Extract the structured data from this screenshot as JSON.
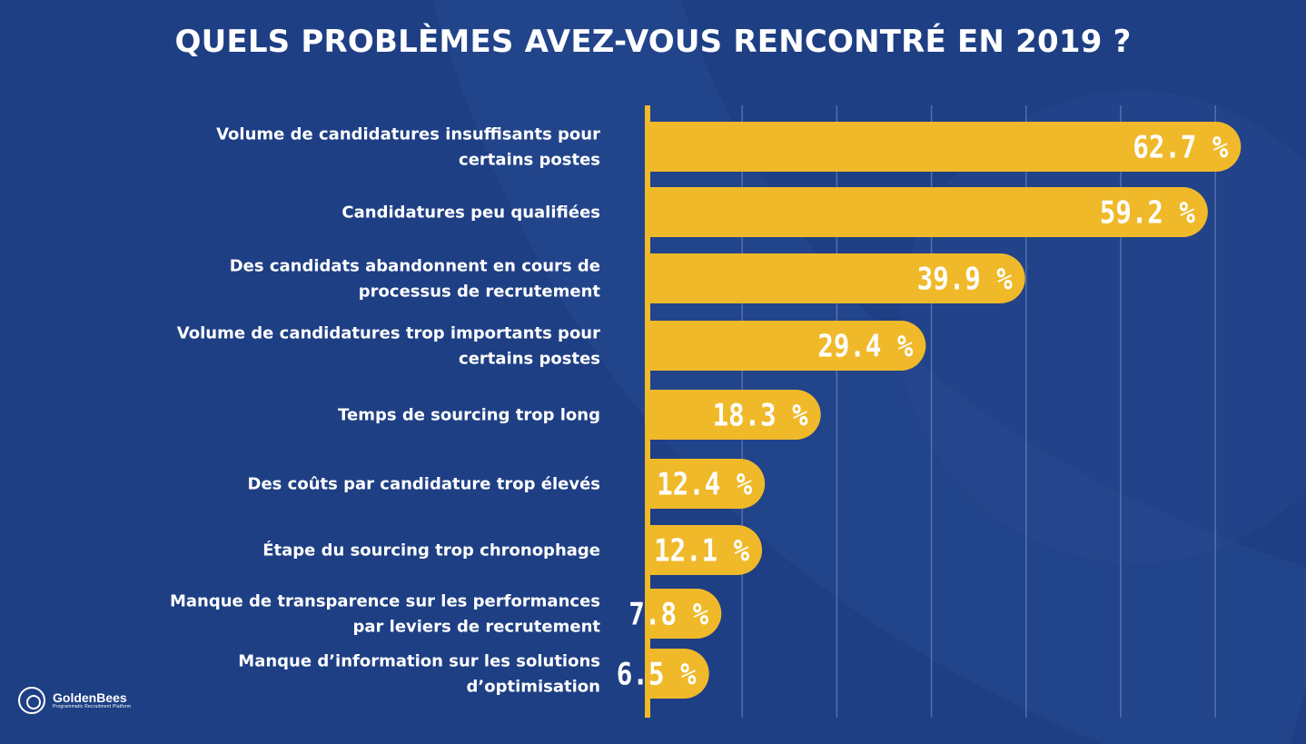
{
  "title": "QUELS PROBLÈMES AVEZ-VOUS RENCONTRÉ EN 2019 ?",
  "logo": {
    "name": "GoldenBees",
    "tagline": "Programmatic Recruitment Platform"
  },
  "colors": {
    "background": "#1e3f84",
    "bar": "#f0b92a",
    "text": "#ffffff",
    "grid": "#6b84b8"
  },
  "chart_data": {
    "type": "bar",
    "orientation": "horizontal",
    "title": "QUELS PROBLÈMES AVEZ-VOUS RENCONTRÉ EN 2019 ?",
    "xlabel": "",
    "ylabel": "",
    "xlim": [
      0,
      70
    ],
    "grid": true,
    "categories": [
      [
        "Volume de candidatures insuffisants pour",
        "certains postes"
      ],
      [
        "Candidatures peu qualifiées"
      ],
      [
        "Des candidats abandonnent en cours de",
        "processus de recrutement"
      ],
      [
        "Volume de candidatures trop importants pour",
        "certains postes"
      ],
      [
        "Temps de sourcing trop long"
      ],
      [
        "Des coûts par candidature trop élevés"
      ],
      [
        "Étape du sourcing trop chronophage"
      ],
      [
        "Manque de transparence sur les performances",
        "par leviers de recrutement"
      ],
      [
        "Manque d’information sur les solutions",
        "d’optimisation"
      ]
    ],
    "values": [
      62.7,
      59.2,
      39.9,
      29.4,
      18.3,
      12.4,
      12.1,
      7.8,
      6.5
    ],
    "value_labels": [
      "62.7 %",
      "59.2 %",
      "39.9 %",
      "29.4 %",
      "18.3 %",
      "12.4 %",
      "12.1 %",
      "7.8 %",
      "6.5 %"
    ]
  }
}
